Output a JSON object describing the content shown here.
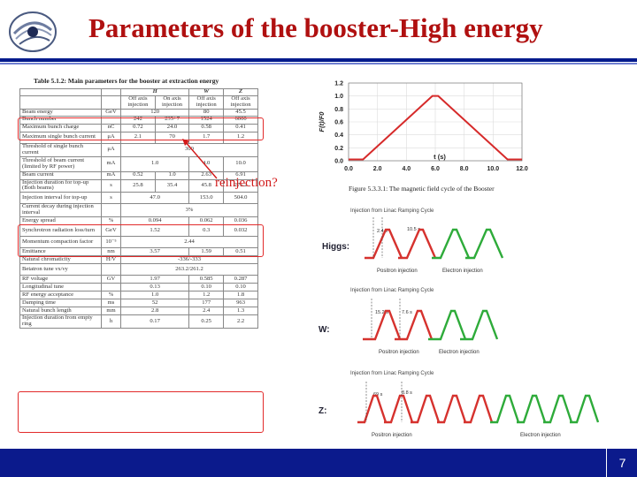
{
  "slide": {
    "title": "Parameters of the booster-High energy",
    "page_number": "7",
    "annotation": "reinjection?"
  },
  "table": {
    "caption": "Table 5.1.2: Main parameters for the booster at extraction energy",
    "mode_headers": [
      "H",
      "W",
      "Z"
    ],
    "sub_headers": [
      "Off axis injection",
      "On axis injection",
      "Off axis injection",
      "Off axis injection"
    ],
    "rows": [
      {
        "name": "Beam energy",
        "unit": "GeV",
        "cells": [
          "120",
          "",
          "80",
          "45.5"
        ]
      },
      {
        "name": "Bunch number",
        "unit": "",
        "cells": [
          "242",
          "235+7",
          "1524",
          "6000"
        ]
      },
      {
        "name": "Maximum bunch charge",
        "unit": "nC",
        "cells": [
          "0.72",
          "24.0",
          "0.58",
          "0.41"
        ]
      },
      {
        "name": "Maximum single bunch current",
        "unit": "μA",
        "cells": [
          "2.1",
          "70",
          "1.7",
          "1.2"
        ]
      },
      {
        "name": "Threshold of single bunch current",
        "unit": "μA",
        "cells": [
          "300",
          "",
          "",
          ""
        ]
      },
      {
        "name": "Threshold of beam current (limited by RF power)",
        "unit": "mA",
        "cells": [
          "1.0",
          "",
          "4.0",
          "10.0"
        ]
      },
      {
        "name": "Beam current",
        "unit": "mA",
        "cells": [
          "0.52",
          "1.0",
          "2.63",
          "6.91"
        ]
      },
      {
        "name": "Injection duration for top-up (Both beams)",
        "unit": "s",
        "cells": [
          "25.8",
          "35.4",
          "45.8",
          "275.2"
        ]
      },
      {
        "name": "Injection interval for top-up",
        "unit": "s",
        "cells": [
          "47.0",
          "",
          "153.0",
          "504.0"
        ]
      },
      {
        "name": "Current decay during injection interval",
        "unit": "",
        "cells": [
          "3%",
          "",
          "",
          ""
        ]
      },
      {
        "name": "Energy spread",
        "unit": "%",
        "cells": [
          "0.094",
          "",
          "0.062",
          "0.036"
        ]
      },
      {
        "name": "Synchrotron radiation loss/turn",
        "unit": "GeV",
        "cells": [
          "1.52",
          "",
          "0.3",
          "0.032"
        ]
      },
      {
        "name": "Momentum compaction factor",
        "unit": "10⁻⁵",
        "cells": [
          "2.44",
          "",
          "",
          ""
        ]
      },
      {
        "name": "Emittance",
        "unit": "nm",
        "cells": [
          "3.57",
          "",
          "1.59",
          "0.51"
        ]
      },
      {
        "name": "Natural chromaticity",
        "unit": "H/V",
        "cells": [
          "-336/-333",
          "",
          "",
          ""
        ]
      },
      {
        "name": "Betatron tune νx/νy",
        "unit": "",
        "cells": [
          "263.2/261.2",
          "",
          "",
          ""
        ]
      },
      {
        "name": "RF voltage",
        "unit": "GV",
        "cells": [
          "1.97",
          "",
          "0.585",
          "0.287"
        ]
      },
      {
        "name": "Longitudinal tune",
        "unit": "",
        "cells": [
          "0.13",
          "",
          "0.10",
          "0.10"
        ]
      },
      {
        "name": "RF energy acceptance",
        "unit": "%",
        "cells": [
          "1.0",
          "",
          "1.2",
          "1.8"
        ]
      },
      {
        "name": "Damping time",
        "unit": "ms",
        "cells": [
          "52",
          "",
          "177",
          "963"
        ]
      },
      {
        "name": "Natural bunch length",
        "unit": "mm",
        "cells": [
          "2.8",
          "",
          "2.4",
          "1.3"
        ]
      },
      {
        "name": "Injection duration from empty ring",
        "unit": "h",
        "cells": [
          "0.17",
          "",
          "0.25",
          "2.2"
        ]
      }
    ]
  },
  "chart_data": {
    "type": "line",
    "caption": "Figure 5.3.3.1: The magnetic field cycle of the Booster",
    "xlabel": "t (s)",
    "ylabel": "F(t)/F0",
    "x_ticks": [
      "0.0",
      "2.0",
      "4.0",
      "6.0",
      "8.0",
      "10.0",
      "12.0"
    ],
    "y_ticks": [
      "0.0",
      "0.2",
      "0.4",
      "0.6",
      "0.8",
      "1.0",
      "1.2"
    ],
    "xlim": [
      0,
      12
    ],
    "ylim": [
      0,
      1.2
    ],
    "series": [
      {
        "x": [
          0,
          1.0,
          5.8,
          6.2,
          11.0,
          12.0
        ],
        "y": [
          0.02,
          0.02,
          1.0,
          1.0,
          0.02,
          0.02
        ]
      }
    ],
    "line_color": "#d62a2a"
  },
  "cycles": {
    "higgs": {
      "label": "Higgs:",
      "top_note": "Injection from Linac  Ramping Cycle",
      "t1": "2.4 s",
      "t2": "10.5 s",
      "positron": "Positron injection",
      "electron": "Electron injection"
    },
    "w": {
      "label": "W:",
      "top_note": "Injection from Linac  Ramping Cycle",
      "t1": "15.2 s",
      "t2": "7.6 s",
      "positron": "Positron injection",
      "electron": "Electron injection"
    },
    "z": {
      "label": "Z:",
      "top_note": "Injection from Linac  Ramping Cycle",
      "t1": "69 s",
      "t2": "8.8 s",
      "positron": "Positron injection",
      "electron": "Electron injection"
    },
    "colors": {
      "positron": "#d6322e",
      "electron": "#2eab3a"
    }
  }
}
